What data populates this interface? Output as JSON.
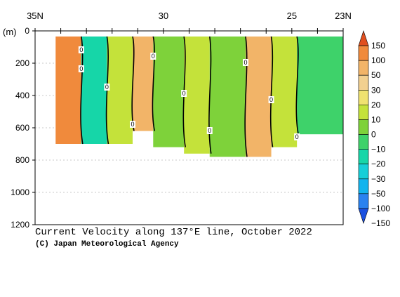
{
  "chart_data": {
    "type": "heatmap",
    "title": "Current Velocity along 137°E line, October 2022",
    "credit": "(C) Japan Meteorological Agency",
    "ylabel": "(m)",
    "x_ticks": [
      {
        "lat": 35,
        "label": "35N"
      },
      {
        "lat": 30,
        "label": "30"
      },
      {
        "lat": 25,
        "label": "25"
      },
      {
        "lat": 23,
        "label": "23N"
      }
    ],
    "xlim": [
      35,
      23
    ],
    "ylim": [
      0,
      1200
    ],
    "y_ticks": [
      0,
      200,
      400,
      600,
      800,
      1000,
      1200
    ],
    "colorbar": {
      "levels": [
        -150,
        -100,
        -50,
        -40,
        -30,
        -20,
        -10,
        0,
        10,
        20,
        30,
        50,
        100,
        150
      ],
      "labels": [
        "150",
        "100",
        "50",
        "30",
        "20",
        "10",
        "0",
        "−10",
        "−20",
        "−30",
        "−50",
        "−100",
        "−150"
      ],
      "colors": [
        "#1a50e0",
        "#2a82f0",
        "#12b4ee",
        "#16cfd8",
        "#16d6a8",
        "#3ed26a",
        "#7ed23a",
        "#c4e23a",
        "#f0e270",
        "#f2d090",
        "#f2b468",
        "#f08a3c",
        "#e04e1e"
      ]
    },
    "contour_labels": [
      "0",
      "0",
      "0",
      "0",
      "0",
      "0",
      "0",
      "0",
      "0",
      "0"
    ],
    "sections": [
      {
        "lat_from": 34.2,
        "lat_to": 33.2,
        "depth": 700,
        "velocity": 80
      },
      {
        "lat_from": 33.2,
        "lat_to": 32.2,
        "depth": 700,
        "velocity": -30
      },
      {
        "lat_from": 32.2,
        "lat_to": 31.2,
        "depth": 700,
        "velocity": 5
      },
      {
        "lat_from": 31.2,
        "lat_to": 30.4,
        "depth": 620,
        "velocity": 30
      },
      {
        "lat_from": 30.4,
        "lat_to": 29.2,
        "depth": 720,
        "velocity": -5
      },
      {
        "lat_from": 29.2,
        "lat_to": 28.2,
        "depth": 760,
        "velocity": 5
      },
      {
        "lat_from": 28.2,
        "lat_to": 26.8,
        "depth": 780,
        "velocity": -10
      },
      {
        "lat_from": 26.8,
        "lat_to": 25.8,
        "depth": 780,
        "velocity": 30
      },
      {
        "lat_from": 25.8,
        "lat_to": 24.8,
        "depth": 720,
        "velocity": 5
      },
      {
        "lat_from": 24.8,
        "lat_to": 23.0,
        "depth": 640,
        "velocity": -20
      }
    ]
  }
}
